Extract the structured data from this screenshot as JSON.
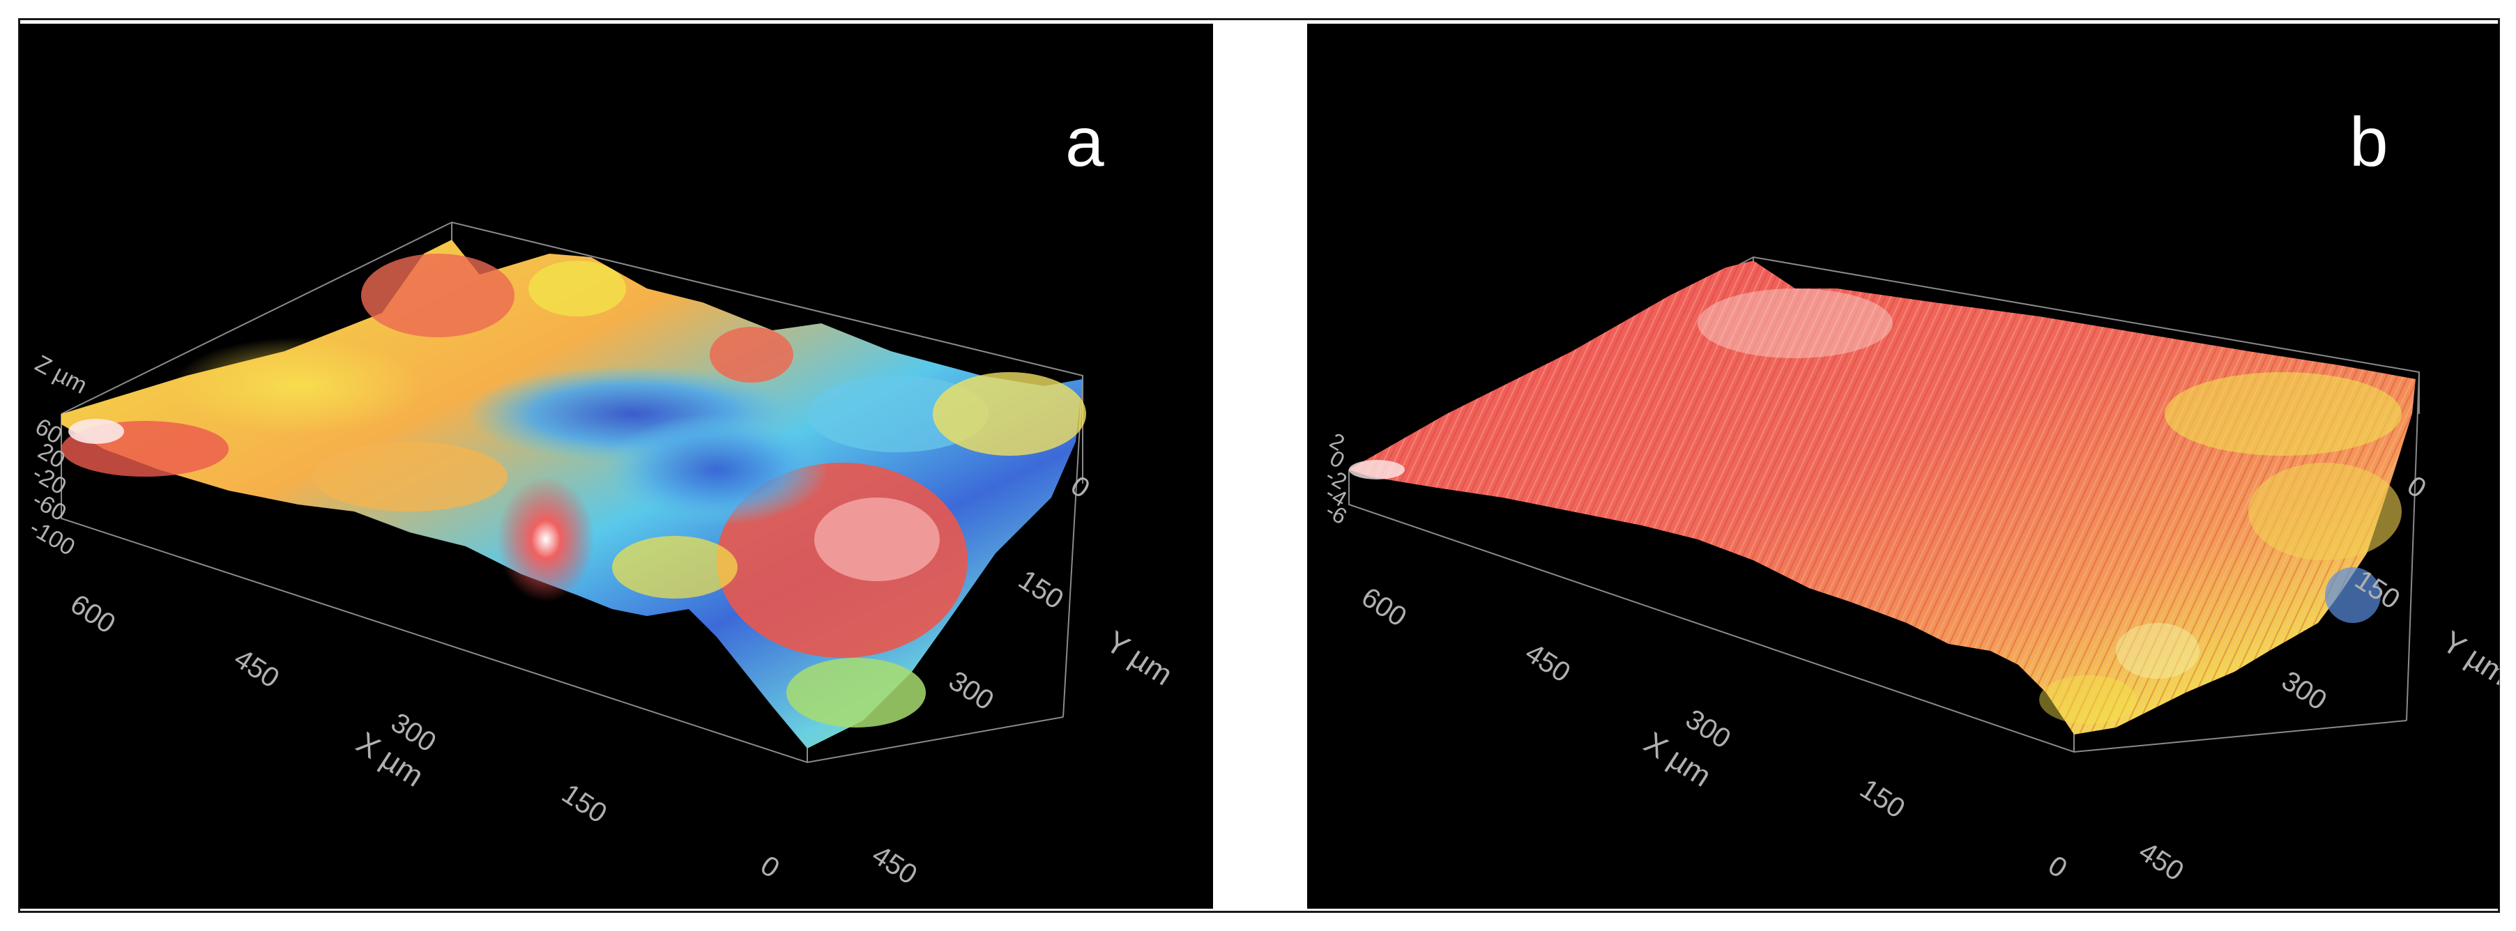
{
  "figure": {
    "panels": [
      {
        "id": "a",
        "label": "a",
        "z_axis_label": "Z µm",
        "z_ticks": [
          "60",
          "20",
          "-20",
          "-60",
          "-100"
        ],
        "x_axis_label": "X µm",
        "x_ticks": [
          "600",
          "450",
          "300",
          "150",
          "0"
        ],
        "y_axis_label": "Y µm",
        "y_ticks": [
          "0",
          "150",
          "300",
          "450"
        ],
        "surface": {
          "colormap": "rainbow",
          "roughness": "high",
          "dominant_colors": [
            "#f0e040",
            "#50c8e8",
            "#e84a4a",
            "#3c64d8"
          ]
        }
      },
      {
        "id": "b",
        "label": "b",
        "z_axis_label": "",
        "z_ticks": [
          "2",
          "0",
          "-2",
          "-4",
          "-6"
        ],
        "x_axis_label": "X µm",
        "x_ticks": [
          "600",
          "450",
          "300",
          "150",
          "0"
        ],
        "y_axis_label": "Y µm",
        "y_ticks": [
          "0",
          "150",
          "300",
          "450"
        ],
        "surface": {
          "colormap": "rainbow",
          "roughness": "fine",
          "dominant_colors": [
            "#ef5a5a",
            "#f4a060",
            "#f0e050",
            "#7ad0e8"
          ]
        }
      }
    ]
  }
}
